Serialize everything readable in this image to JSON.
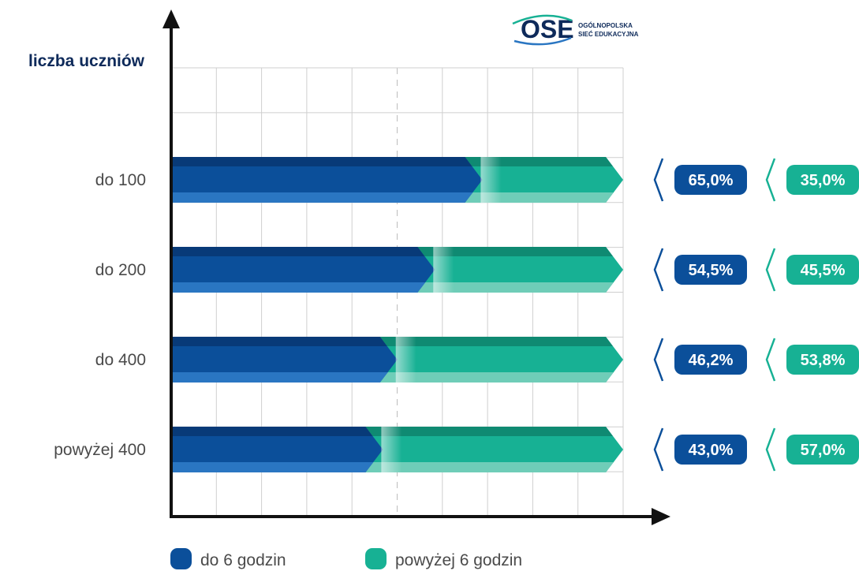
{
  "logo": {
    "mark": "OSE",
    "line1": "OGÓLNOPOLSKA",
    "line2": "SIEĆ EDUKACYJNA"
  },
  "colors": {
    "series1": "#0b4f9a",
    "series1_dark": "#083a78",
    "series1_light": "#2a76c2",
    "series2": "#17b194",
    "series2_dark": "#0f8a72",
    "series2_light": "#6fcdb8",
    "axis": "#111111",
    "grid": "#cfcfcf",
    "ylabel": "#0e2a5a"
  },
  "chart_data": {
    "type": "bar",
    "stacked": true,
    "orientation": "horizontal",
    "title": "",
    "ylabel": "liczba uczniów",
    "xlabel": "",
    "xlim": [
      0,
      100
    ],
    "grid": true,
    "legend_position": "bottom",
    "categories": [
      "do 100",
      "do 200",
      "do 400",
      "powyżej 400"
    ],
    "series": [
      {
        "name": "do 6 godzin",
        "values": [
          65.0,
          54.5,
          46.2,
          43.0
        ],
        "labels": [
          "65,0%",
          "54,5%",
          "46,2%",
          "43,0%"
        ]
      },
      {
        "name": "powyżej 6 godzin",
        "values": [
          35.0,
          45.5,
          53.8,
          57.0
        ],
        "labels": [
          "35,0%",
          "45,5%",
          "53,8%",
          "57,0%"
        ]
      }
    ]
  }
}
